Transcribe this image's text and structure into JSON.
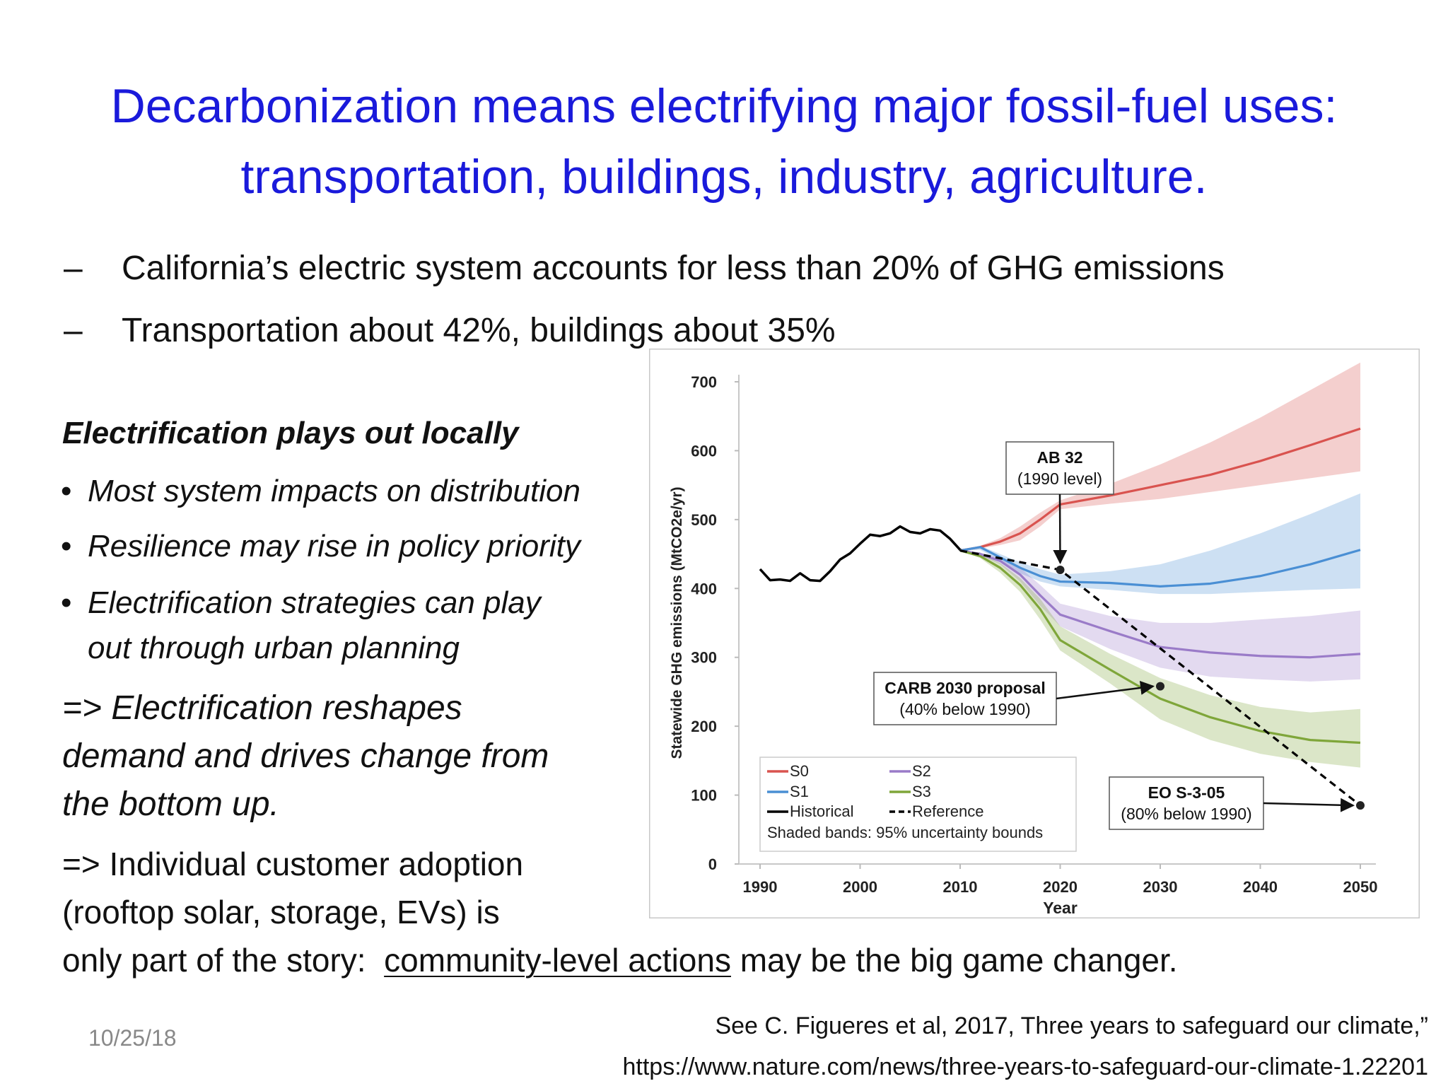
{
  "slide": {
    "title_line1": "Decarbonization means electrifying major fossil-fuel uses:",
    "title_line2": "transportation, buildings, industry, agriculture.",
    "dash_items": [
      "California’s electric system accounts for less than 20% of GHG emissions",
      "Transportation about 42%, buildings about 35%"
    ],
    "dash_symbol": "–",
    "left_heading": "Electrification plays out locally",
    "bullets": [
      "Most system impacts on distribution",
      "Resilience may rise in policy priority",
      "Electrification strategies can play",
      "out through urban planning"
    ],
    "bullet_symbol": "•",
    "reshape_lines": [
      "=> Electrification reshapes",
      "demand and drives change from",
      "the bottom up."
    ],
    "adoption_lines": [
      "=> Individual customer adoption",
      "(rooftop solar, storage, EVs) is"
    ],
    "story_prefix": "only part of the story:",
    "story_underlined": "community-level actions",
    "story_suffix": "may be the big game changer.",
    "date": "10/25/18",
    "reference_line1": "See C. Figueres et al, 2017, Three years to safeguard our climate,”",
    "reference_line2": "https://www.nature.com/news/three-years-to-safeguard-our-climate-1.22201"
  },
  "chart_data": {
    "type": "line",
    "xlabel": "Year",
    "ylabel": "Statewide GHG emissions (MtCO2e/yr)",
    "xlim": [
      1990,
      2050
    ],
    "ylim": [
      0,
      700
    ],
    "xticks": [
      "1990",
      "2000",
      "2010",
      "2020",
      "2030",
      "2040",
      "2050"
    ],
    "yticks": [
      "0",
      "100",
      "200",
      "300",
      "400",
      "500",
      "600",
      "700"
    ],
    "grid": false,
    "legend_position": "bottom-left",
    "legend_note": "Shaded bands: 95% uncertainty bounds",
    "colors": {
      "S0": "#d9534f",
      "S1": "#4a8fd4",
      "S2": "#9a7bc8",
      "S3": "#7fa63a",
      "Historical": "#000000",
      "Reference": "#000000"
    },
    "series": [
      {
        "name": "Historical",
        "style": "solid",
        "x": [
          1990,
          1991,
          1992,
          1993,
          1994,
          1995,
          1996,
          1997,
          1998,
          1999,
          2000,
          2001,
          2002,
          2003,
          2004,
          2005,
          2006,
          2007,
          2008,
          2009,
          2010,
          2011,
          2012
        ],
        "y": [
          428,
          412,
          413,
          411,
          422,
          412,
          411,
          425,
          442,
          451,
          465,
          478,
          476,
          480,
          490,
          482,
          480,
          486,
          484,
          472,
          456,
          452,
          450
        ]
      },
      {
        "name": "S0",
        "style": "solid",
        "x": [
          2010,
          2012,
          2014,
          2016,
          2018,
          2020,
          2025,
          2030,
          2035,
          2040,
          2045,
          2050
        ],
        "y": [
          455,
          460,
          468,
          480,
          500,
          522,
          535,
          550,
          565,
          585,
          608,
          632
        ],
        "upper": [
          455,
          462,
          473,
          490,
          510,
          528,
          552,
          580,
          612,
          648,
          688,
          728
        ],
        "lower": [
          455,
          458,
          463,
          470,
          490,
          515,
          523,
          530,
          540,
          550,
          560,
          570
        ]
      },
      {
        "name": "S1",
        "style": "solid",
        "x": [
          2010,
          2012,
          2014,
          2016,
          2018,
          2020,
          2025,
          2030,
          2035,
          2040,
          2045,
          2050
        ],
        "y": [
          455,
          460,
          445,
          430,
          418,
          410,
          408,
          403,
          407,
          418,
          435,
          456
        ],
        "upper": [
          455,
          462,
          450,
          438,
          428,
          420,
          425,
          435,
          455,
          480,
          508,
          538
        ],
        "lower": [
          455,
          456,
          440,
          422,
          410,
          403,
          398,
          392,
          392,
          395,
          398,
          400
        ]
      },
      {
        "name": "S2",
        "style": "solid",
        "x": [
          2010,
          2012,
          2014,
          2016,
          2018,
          2020,
          2025,
          2030,
          2035,
          2040,
          2045,
          2050
        ],
        "y": [
          455,
          450,
          440,
          420,
          390,
          362,
          338,
          315,
          307,
          302,
          300,
          305
        ],
        "upper": [
          455,
          452,
          445,
          430,
          405,
          378,
          360,
          350,
          350,
          355,
          360,
          368
        ],
        "lower": [
          455,
          448,
          435,
          410,
          375,
          345,
          312,
          285,
          272,
          268,
          265,
          268
        ]
      },
      {
        "name": "S3",
        "style": "solid",
        "x": [
          2010,
          2012,
          2014,
          2016,
          2018,
          2020,
          2025,
          2030,
          2035,
          2040,
          2045,
          2050
        ],
        "y": [
          455,
          447,
          430,
          405,
          370,
          325,
          282,
          240,
          213,
          193,
          180,
          176
        ],
        "upper": [
          455,
          450,
          437,
          415,
          385,
          345,
          305,
          270,
          245,
          228,
          220,
          225
        ],
        "lower": [
          455,
          444,
          423,
          395,
          355,
          310,
          262,
          210,
          180,
          160,
          148,
          140
        ]
      },
      {
        "name": "Reference",
        "style": "dashed",
        "x": [
          2010,
          2020,
          2050
        ],
        "y": [
          455,
          427,
          85
        ]
      }
    ],
    "markers": [
      {
        "x": 2020,
        "y": 427
      },
      {
        "x": 2030,
        "y": 258
      },
      {
        "x": 2050,
        "y": 85
      }
    ],
    "annotations": [
      {
        "line1": "AB 32",
        "line2": "(1990 level)",
        "target_x": 2020,
        "target_y": 427
      },
      {
        "line1": "CARB 2030 proposal",
        "line2": "(40% below 1990)",
        "target_x": 2030,
        "target_y": 258
      },
      {
        "line1": "EO S-3-05",
        "line2": "(80% below 1990)",
        "target_x": 2050,
        "target_y": 85
      }
    ]
  }
}
